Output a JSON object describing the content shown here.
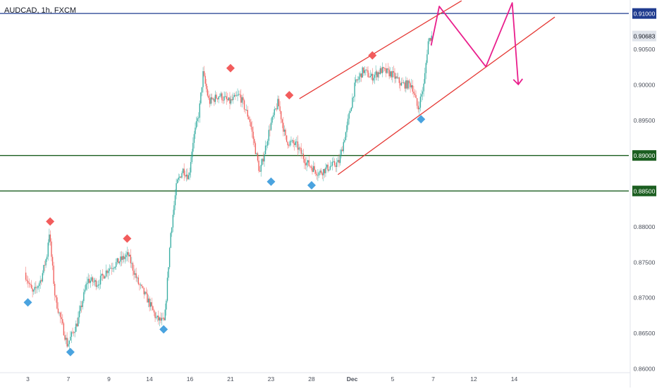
{
  "header": {
    "symbol_title": "AUDCAD, 1h, FXCM"
  },
  "colors": {
    "background": "#ffffff",
    "candle_up": "#26a69a",
    "candle_down": "#ef5350",
    "resistance_line": "#1f3b8f",
    "support_line": "#1b5e20",
    "channel_line": "#e53935",
    "projection_line": "#e91e8c",
    "marker_high": "#f25c5c",
    "marker_low": "#4aa3df",
    "axis_text": "#4a4f5a",
    "current_price_box": "#dfe3ea"
  },
  "chart_data": {
    "type": "candlestick",
    "symbol": "AUDCAD",
    "timeframe": "1h",
    "source": "FXCM",
    "ylim": [
      0.8595,
      0.9119
    ],
    "y_ticks": [
      "0.86000",
      "0.86500",
      "0.87000",
      "0.87500",
      "0.88000",
      "0.88500",
      "0.89000",
      "0.89500",
      "0.90000",
      "0.90500",
      "0.91000"
    ],
    "x_ticks": [
      "3",
      "7",
      "9",
      "14",
      "16",
      "21",
      "23",
      "28",
      "Dec",
      "5",
      "7",
      "12",
      "14"
    ],
    "x_tick_index": [
      0,
      2,
      4,
      6,
      8,
      10,
      12,
      14,
      16,
      18,
      20,
      22,
      24
    ],
    "current_price": "0.90683",
    "levels": [
      {
        "label": "0.91000",
        "price": 0.91,
        "role": "resistance"
      },
      {
        "label": "0.89000",
        "price": 0.89,
        "role": "support"
      },
      {
        "label": "0.88500",
        "price": 0.885,
        "role": "support"
      }
    ],
    "price_path": [
      [
        -0.1,
        0.8735
      ],
      [
        0.3,
        0.8705
      ],
      [
        0.7,
        0.8725
      ],
      [
        1.0,
        0.876
      ],
      [
        1.1,
        0.8795
      ],
      [
        1.4,
        0.87
      ],
      [
        2.0,
        0.8633
      ],
      [
        2.5,
        0.8665
      ],
      [
        3.0,
        0.8725
      ],
      [
        3.5,
        0.872
      ],
      [
        4.0,
        0.874
      ],
      [
        4.5,
        0.875
      ],
      [
        5.0,
        0.876
      ],
      [
        5.5,
        0.872
      ],
      [
        6.0,
        0.8695
      ],
      [
        6.4,
        0.867
      ],
      [
        6.8,
        0.8665
      ],
      [
        7.1,
        0.879
      ],
      [
        7.4,
        0.886
      ],
      [
        7.7,
        0.888
      ],
      [
        8.0,
        0.887
      ],
      [
        8.2,
        0.892
      ],
      [
        8.5,
        0.896
      ],
      [
        8.7,
        0.9015
      ],
      [
        9.0,
        0.8975
      ],
      [
        9.5,
        0.8985
      ],
      [
        10.0,
        0.8975
      ],
      [
        10.5,
        0.8985
      ],
      [
        11.0,
        0.895
      ],
      [
        11.5,
        0.8875
      ],
      [
        12.0,
        0.894
      ],
      [
        12.4,
        0.8975
      ],
      [
        12.8,
        0.892
      ],
      [
        13.3,
        0.8915
      ],
      [
        13.8,
        0.889
      ],
      [
        14.4,
        0.8875
      ],
      [
        15.0,
        0.8885
      ],
      [
        15.4,
        0.889
      ],
      [
        15.8,
        0.894
      ],
      [
        16.2,
        0.9
      ],
      [
        16.6,
        0.902
      ],
      [
        17.0,
        0.901
      ],
      [
        17.5,
        0.902
      ],
      [
        18.0,
        0.9015
      ],
      [
        18.5,
        0.9
      ],
      [
        19.0,
        0.9
      ],
      [
        19.3,
        0.8965
      ],
      [
        19.6,
        0.9
      ],
      [
        19.8,
        0.906
      ],
      [
        19.95,
        0.9068
      ]
    ],
    "swing_markers": [
      {
        "type": "low",
        "x": 0.0,
        "price": 0.87
      },
      {
        "type": "high",
        "x": 1.1,
        "price": 0.88
      },
      {
        "type": "low",
        "x": 2.1,
        "price": 0.863
      },
      {
        "type": "high",
        "x": 4.9,
        "price": 0.8776
      },
      {
        "type": "low",
        "x": 6.7,
        "price": 0.8662
      },
      {
        "type": "high",
        "x": 10.0,
        "price": 0.9016
      },
      {
        "type": "low",
        "x": 12.0,
        "price": 0.887
      },
      {
        "type": "high",
        "x": 12.9,
        "price": 0.8978
      },
      {
        "type": "low",
        "x": 14.0,
        "price": 0.8865
      },
      {
        "type": "high",
        "x": 17.0,
        "price": 0.9034
      },
      {
        "type": "low",
        "x": 19.4,
        "price": 0.8958
      }
    ],
    "channel": {
      "upper": [
        [
          13.4,
          0.898
        ],
        [
          21.4,
          0.9118
        ]
      ],
      "lower": [
        [
          15.3,
          0.8873
        ],
        [
          26.0,
          0.9095
        ]
      ]
    },
    "projection": [
      [
        19.9,
        0.9055
      ],
      [
        20.3,
        0.911
      ],
      [
        22.6,
        0.9025
      ],
      [
        23.9,
        0.9115
      ],
      [
        24.2,
        0.9
      ]
    ],
    "grid": false,
    "legend": "none"
  }
}
